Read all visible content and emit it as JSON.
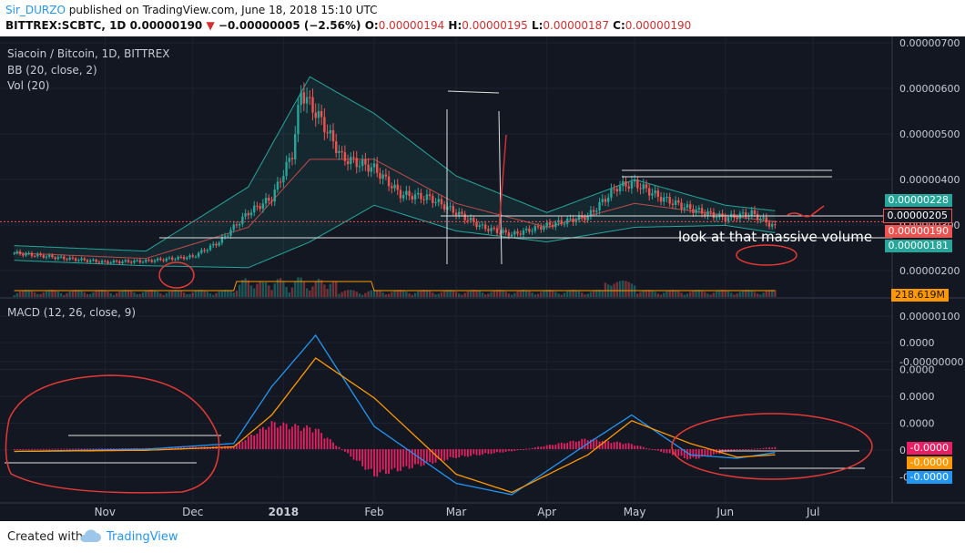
{
  "header": {
    "user": "Sir_DURZO",
    "published_text": "published on TradingView.com, June 18, 2018 15:10 UTC",
    "symbol": "BITTREX:SCBTC, 1D",
    "last": "0.00000190",
    "down_arrow": "▼",
    "change": "−0.00000005 (−2.56%)",
    "o_label": "O:",
    "o": "0.00000194",
    "h_label": "H:",
    "h": "0.00000195",
    "l_label": "L:",
    "l": "0.00000187",
    "c_label": "C:",
    "c": "0.00000190"
  },
  "legend": {
    "title": "Siacoin / Bitcoin, 1D, BITTREX",
    "bb": "BB (20, close, 2)",
    "vol": "Vol (20)",
    "macd": "MACD (12, 26, close, 9)"
  },
  "annotation": "look at that massive volume",
  "price_tags": [
    {
      "text": "0.00000228",
      "color": "#26a69a"
    },
    {
      "text": "0.00000205",
      "color": "#131722"
    },
    {
      "text": "0.00000190",
      "color": "#ef5350"
    },
    {
      "text": "0.00000181",
      "color": "#26a69a"
    }
  ],
  "volume_tag": "218.619M",
  "macd_tags": [
    {
      "text": "-0.0000",
      "color": "#e91e63"
    },
    {
      "text": "-0.0000",
      "color": "#ff9800"
    },
    {
      "text": "-0.0000",
      "color": "#2196f3"
    }
  ],
  "price_axis_labels": [
    "0.00000700",
    "0.00000600",
    "0.00000500",
    "0.00000400",
    "0.00000300",
    "0.00000200",
    "0.00000100",
    "-0.00000000"
  ],
  "macd_axis_labels": [
    "0.0000",
    "0.0000",
    "0.0000",
    "0.0000",
    "0.0000",
    "-0.0000"
  ],
  "time_labels": [
    "Nov",
    "Dec",
    "2018",
    "Feb",
    "Mar",
    "Apr",
    "May",
    "Jun",
    "Jul"
  ],
  "footer": {
    "created": "Created with",
    "brand": "TradingView"
  },
  "colors": {
    "bg": "#131722",
    "up": "#26a69a",
    "down": "#ef5350",
    "bb_band": "#26a69a",
    "bb_basis": "#ef5350",
    "macd": "#2196f3",
    "signal": "#ff9800",
    "hist": "#e91e63"
  },
  "chart_data": {
    "type": "candlestick",
    "symbol": "BITTREX:SCBTC",
    "interval": "1D",
    "price_ylim": [
      0,
      7e-06
    ],
    "series": [
      {
        "name": "Price (approx. close)",
        "points": [
          {
            "x": "2017-10-01",
            "y": 1.2e-06
          },
          {
            "x": "2017-10-15",
            "y": 1.08e-06
          },
          {
            "x": "2017-11-01",
            "y": 9.5e-07
          },
          {
            "x": "2017-11-15",
            "y": 9.8e-07
          },
          {
            "x": "2017-12-01",
            "y": 1.1e-06
          },
          {
            "x": "2017-12-10",
            "y": 1.5e-06
          },
          {
            "x": "2017-12-20",
            "y": 2.3e-06
          },
          {
            "x": "2017-12-28",
            "y": 2.7e-06
          },
          {
            "x": "2018-01-04",
            "y": 3.9e-06
          },
          {
            "x": "2018-01-07",
            "y": 5.6e-06
          },
          {
            "x": "2018-01-14",
            "y": 4.8e-06
          },
          {
            "x": "2018-01-21",
            "y": 3.8e-06
          },
          {
            "x": "2018-02-01",
            "y": 3.5e-06
          },
          {
            "x": "2018-02-10",
            "y": 2.8e-06
          },
          {
            "x": "2018-02-20",
            "y": 2.7e-06
          },
          {
            "x": "2018-03-01",
            "y": 2.3e-06
          },
          {
            "x": "2018-03-10",
            "y": 1.9e-06
          },
          {
            "x": "2018-03-20",
            "y": 1.7e-06
          },
          {
            "x": "2018-04-01",
            "y": 1.95e-06
          },
          {
            "x": "2018-04-15",
            "y": 2.2e-06
          },
          {
            "x": "2018-04-25",
            "y": 3e-06
          },
          {
            "x": "2018-05-01",
            "y": 3.1e-06
          },
          {
            "x": "2018-05-10",
            "y": 2.7e-06
          },
          {
            "x": "2018-05-20",
            "y": 2.4e-06
          },
          {
            "x": "2018-06-01",
            "y": 2.15e-06
          },
          {
            "x": "2018-06-10",
            "y": 2.28e-06
          },
          {
            "x": "2018-06-18",
            "y": 1.9e-06
          }
        ]
      },
      {
        "name": "BB upper",
        "points": [
          {
            "x": "2017-10-01",
            "y": 1.4e-06
          },
          {
            "x": "2017-11-15",
            "y": 1.25e-06
          },
          {
            "x": "2017-12-20",
            "y": 3e-06
          },
          {
            "x": "2018-01-10",
            "y": 6e-06
          },
          {
            "x": "2018-02-01",
            "y": 5e-06
          },
          {
            "x": "2018-03-01",
            "y": 3.3e-06
          },
          {
            "x": "2018-04-01",
            "y": 2.3e-06
          },
          {
            "x": "2018-05-01",
            "y": 3.2e-06
          },
          {
            "x": "2018-06-01",
            "y": 2.5e-06
          },
          {
            "x": "2018-06-18",
            "y": 2.35e-06
          }
        ]
      },
      {
        "name": "BB lower",
        "points": [
          {
            "x": "2017-10-01",
            "y": 1e-06
          },
          {
            "x": "2017-11-15",
            "y": 8.5e-07
          },
          {
            "x": "2017-12-20",
            "y": 8e-07
          },
          {
            "x": "2018-01-10",
            "y": 1.5e-06
          },
          {
            "x": "2018-02-01",
            "y": 2.5e-06
          },
          {
            "x": "2018-03-01",
            "y": 1.8e-06
          },
          {
            "x": "2018-04-01",
            "y": 1.5e-06
          },
          {
            "x": "2018-05-01",
            "y": 1.9e-06
          },
          {
            "x": "2018-06-01",
            "y": 1.95e-06
          },
          {
            "x": "2018-06-18",
            "y": 1.75e-06
          }
        ]
      }
    ],
    "macd": {
      "points": [
        {
          "x": "2017-10-01",
          "macd": -0.02,
          "signal": -0.02,
          "hist": 0.0
        },
        {
          "x": "2017-11-15",
          "macd": 0.0,
          "signal": -0.01,
          "hist": 0.01
        },
        {
          "x": "2017-12-15",
          "macd": 0.05,
          "signal": 0.02,
          "hist": 0.03
        },
        {
          "x": "2017-12-28",
          "macd": 0.55,
          "signal": 0.3,
          "hist": 0.25
        },
        {
          "x": "2018-01-12",
          "macd": 1.0,
          "signal": 0.8,
          "hist": 0.2
        },
        {
          "x": "2018-02-01",
          "macd": 0.2,
          "signal": 0.45,
          "hist": -0.25
        },
        {
          "x": "2018-03-01",
          "macd": -0.3,
          "signal": -0.22,
          "hist": -0.08
        },
        {
          "x": "2018-03-20",
          "macd": -0.4,
          "signal": -0.38,
          "hist": -0.02
        },
        {
          "x": "2018-04-15",
          "macd": 0.05,
          "signal": -0.05,
          "hist": 0.1
        },
        {
          "x": "2018-04-30",
          "macd": 0.3,
          "signal": 0.25,
          "hist": 0.05
        },
        {
          "x": "2018-05-20",
          "macd": -0.05,
          "signal": 0.05,
          "hist": -0.1
        },
        {
          "x": "2018-06-05",
          "macd": -0.08,
          "signal": -0.07,
          "hist": -0.01
        },
        {
          "x": "2018-06-18",
          "macd": -0.03,
          "signal": -0.05,
          "hist": 0.02
        }
      ]
    }
  }
}
